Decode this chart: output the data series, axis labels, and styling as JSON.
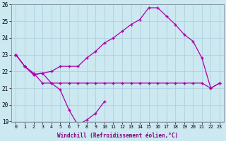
{
  "background_color": "#cce8f0",
  "grid_color": "#aaccdd",
  "line_color": "#aa00aa",
  "xlabel": "Windchill (Refroidissement éolien,°C)",
  "ylim": [
    19,
    26
  ],
  "yticks": [
    19,
    20,
    21,
    22,
    23,
    24,
    25,
    26
  ],
  "line1_x": [
    0,
    1,
    2,
    3,
    4,
    5,
    6,
    7,
    8,
    9,
    10
  ],
  "line1_y": [
    23.0,
    22.3,
    21.8,
    21.9,
    21.3,
    20.9,
    19.7,
    18.8,
    19.1,
    19.5,
    20.2
  ],
  "line2_x": [
    0,
    1,
    2,
    3,
    4,
    5,
    6,
    7,
    8,
    9,
    10,
    11,
    12,
    13,
    14,
    15,
    16,
    17,
    18,
    19,
    20,
    21,
    22,
    23
  ],
  "line2_y": [
    23.0,
    22.3,
    21.8,
    21.9,
    22.0,
    22.3,
    22.3,
    22.3,
    22.8,
    23.2,
    23.7,
    24.0,
    24.4,
    24.8,
    25.1,
    25.8,
    25.8,
    25.3,
    24.8,
    24.2,
    23.8,
    22.8,
    21.0,
    21.3
  ],
  "line3_x": [
    0,
    1,
    2,
    3,
    4,
    5,
    6,
    7,
    8,
    9,
    10,
    11,
    12,
    13,
    14,
    15,
    16,
    17,
    18,
    19,
    20,
    21,
    22,
    23
  ],
  "line3_y": [
    23.0,
    22.3,
    21.9,
    21.3,
    21.3,
    21.3,
    21.3,
    21.3,
    21.3,
    21.3,
    21.3,
    21.3,
    21.3,
    21.3,
    21.3,
    21.3,
    21.3,
    21.3,
    21.3,
    21.3,
    21.3,
    21.3,
    21.0,
    21.3
  ]
}
